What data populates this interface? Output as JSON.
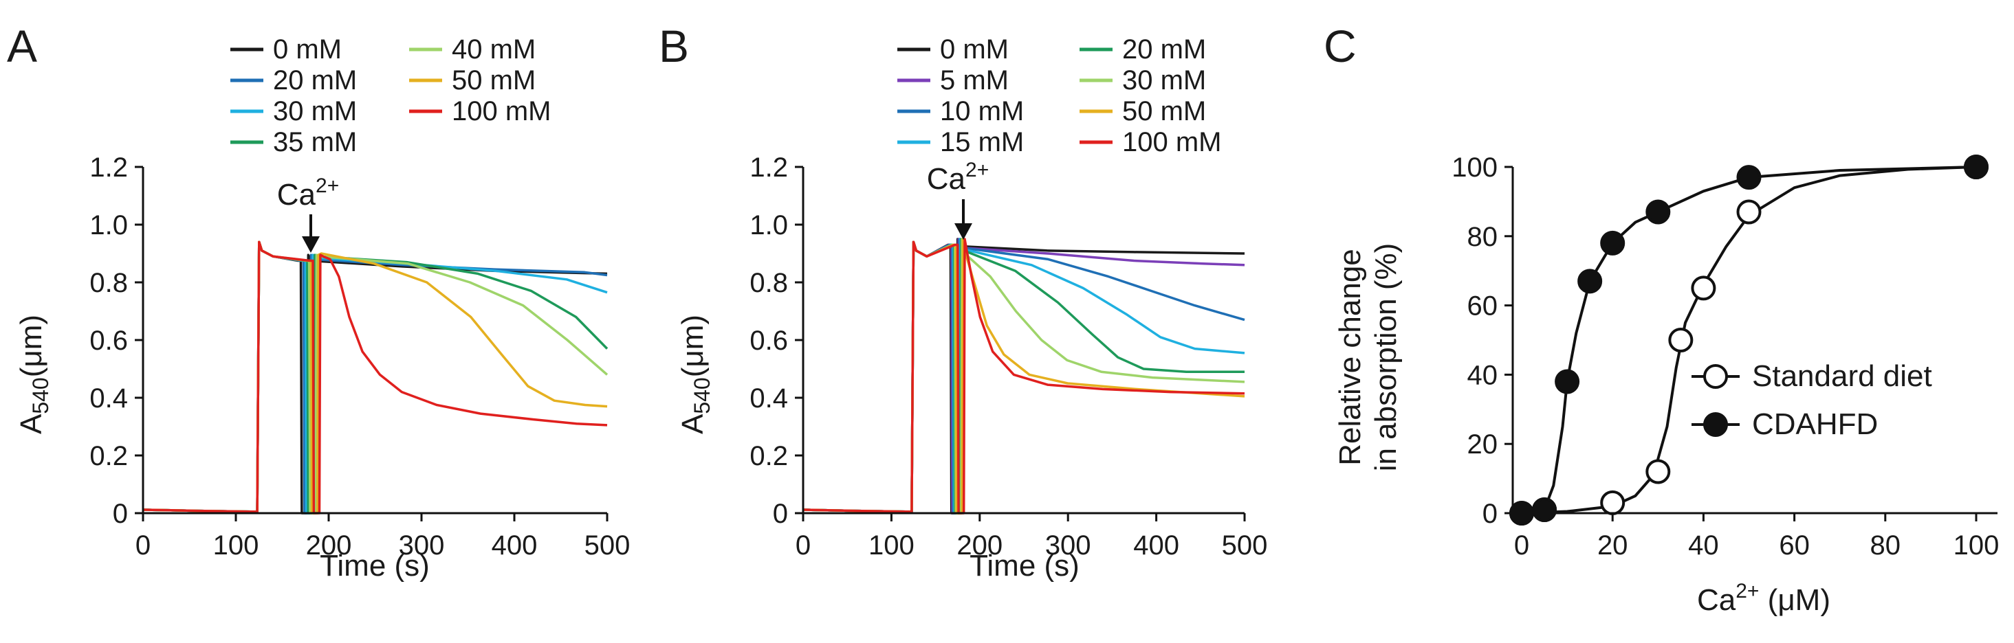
{
  "chart_data": [
    {
      "panel": "A",
      "type": "line",
      "xlabel": "Time (s)",
      "ylabel": "A540(μm)",
      "ylabel_main": "A",
      "ylabel_sub": "540",
      "ylabel_rest": "(μm)",
      "xlim": [
        0,
        500
      ],
      "ylim": [
        0,
        1.2
      ],
      "xticks": [
        "0",
        "100",
        "200",
        "300",
        "400",
        "500"
      ],
      "yticks": [
        "0",
        "0.2",
        "0.4",
        "0.6",
        "0.8",
        "1.0",
        "1.2"
      ],
      "annotation": {
        "text": "Ca",
        "sup": "2+",
        "x": 185
      },
      "legend": [
        "0 mM",
        "40 mM",
        "20 mM",
        "50 mM",
        "30 mM",
        "100 mM",
        "35 mM"
      ],
      "series": [
        {
          "name": "0 mM",
          "color": "#1a1a1a",
          "add_time": 175,
          "pre": 0.875,
          "points": [
            [
              0,
              0.875
            ],
            [
              100,
              0.855
            ],
            [
              200,
              0.84
            ],
            [
              325,
              0.83
            ]
          ]
        },
        {
          "name": "20 mM",
          "color": "#1f6fb5",
          "add_time": 178,
          "pre": 0.875,
          "points": [
            [
              0,
              0.88
            ],
            [
              100,
              0.86
            ],
            [
              200,
              0.845
            ],
            [
              300,
              0.835
            ],
            [
              325,
              0.825
            ]
          ]
        },
        {
          "name": "30 mM",
          "color": "#1fb0e0",
          "add_time": 180,
          "pre": 0.875,
          "points": [
            [
              0,
              0.885
            ],
            [
              100,
              0.865
            ],
            [
              200,
              0.84
            ],
            [
              280,
              0.81
            ],
            [
              325,
              0.765
            ]
          ]
        },
        {
          "name": "35 mM",
          "color": "#1e9a5a",
          "add_time": 182,
          "pre": 0.875,
          "points": [
            [
              0,
              0.89
            ],
            [
              100,
              0.87
            ],
            [
              180,
              0.83
            ],
            [
              240,
              0.77
            ],
            [
              290,
              0.68
            ],
            [
              325,
              0.57
            ]
          ]
        },
        {
          "name": "40 mM",
          "color": "#9fd46a",
          "add_time": 184,
          "pre": 0.875,
          "points": [
            [
              0,
              0.89
            ],
            [
              100,
              0.865
            ],
            [
              170,
              0.8
            ],
            [
              230,
              0.72
            ],
            [
              280,
              0.6
            ],
            [
              325,
              0.48
            ]
          ]
        },
        {
          "name": "50 mM",
          "color": "#e5b020",
          "add_time": 186,
          "pre": 0.875,
          "points": [
            [
              0,
              0.9
            ],
            [
              60,
              0.865
            ],
            [
              120,
              0.8
            ],
            [
              170,
              0.68
            ],
            [
              205,
              0.55
            ],
            [
              235,
              0.44
            ],
            [
              265,
              0.39
            ],
            [
              300,
              0.375
            ],
            [
              325,
              0.37
            ]
          ]
        },
        {
          "name": "100 mM",
          "color": "#e0201e",
          "add_time": 188,
          "pre": 0.875,
          "points": [
            [
              0,
              0.89
            ],
            [
              8,
              0.88
            ],
            [
              18,
              0.82
            ],
            [
              30,
              0.68
            ],
            [
              45,
              0.56
            ],
            [
              65,
              0.48
            ],
            [
              90,
              0.42
            ],
            [
              130,
              0.375
            ],
            [
              180,
              0.345
            ],
            [
              240,
              0.325
            ],
            [
              290,
              0.31
            ],
            [
              325,
              0.305
            ]
          ]
        }
      ]
    },
    {
      "panel": "B",
      "type": "line",
      "xlabel": "Time (s)",
      "ylabel": "A540(μm)",
      "ylabel_main": "A",
      "ylabel_sub": "540",
      "ylabel_rest": "(μm)",
      "xlim": [
        0,
        500
      ],
      "ylim": [
        0,
        1.2
      ],
      "xticks": [
        "0",
        "100",
        "200",
        "300",
        "400",
        "500"
      ],
      "yticks": [
        "0",
        "0.2",
        "0.4",
        "0.6",
        "0.8",
        "1.0",
        "1.2"
      ],
      "annotation": {
        "text": "Ca",
        "sup": "2+",
        "x": 178
      },
      "legend": [
        "0 mM",
        "20 mM",
        "5 mM",
        "30 mM",
        "10 mM",
        "50 mM",
        "15 mM",
        "100 mM"
      ],
      "series": [
        {
          "name": "0 mM",
          "color": "#1a1a1a",
          "add_time": 172,
          "pre": 0.93,
          "points": [
            [
              0,
              0.925
            ],
            [
              100,
              0.91
            ],
            [
              200,
              0.905
            ],
            [
              328,
              0.9
            ]
          ]
        },
        {
          "name": "5 mM",
          "color": "#7b3fb8",
          "add_time": 173,
          "pre": 0.93,
          "points": [
            [
              0,
              0.92
            ],
            [
              100,
              0.9
            ],
            [
              200,
              0.875
            ],
            [
              280,
              0.865
            ],
            [
              328,
              0.86
            ]
          ]
        },
        {
          "name": "10 mM",
          "color": "#1f6fb5",
          "add_time": 174,
          "pre": 0.93,
          "points": [
            [
              0,
              0.92
            ],
            [
              100,
              0.88
            ],
            [
              170,
              0.82
            ],
            [
              220,
              0.77
            ],
            [
              270,
              0.72
            ],
            [
              328,
              0.67
            ]
          ]
        },
        {
          "name": "15 mM",
          "color": "#1fb0e0",
          "add_time": 175,
          "pre": 0.93,
          "points": [
            [
              0,
              0.915
            ],
            [
              80,
              0.86
            ],
            [
              140,
              0.78
            ],
            [
              190,
              0.69
            ],
            [
              230,
              0.61
            ],
            [
              270,
              0.57
            ],
            [
              328,
              0.555
            ]
          ]
        },
        {
          "name": "20 mM",
          "color": "#1e9a5a",
          "add_time": 176,
          "pre": 0.93,
          "points": [
            [
              0,
              0.91
            ],
            [
              60,
              0.84
            ],
            [
              110,
              0.73
            ],
            [
              150,
              0.62
            ],
            [
              180,
              0.54
            ],
            [
              210,
              0.5
            ],
            [
              260,
              0.49
            ],
            [
              328,
              0.49
            ]
          ]
        },
        {
          "name": "30 mM",
          "color": "#9fd46a",
          "add_time": 177,
          "pre": 0.93,
          "points": [
            [
              0,
              0.9
            ],
            [
              30,
              0.82
            ],
            [
              60,
              0.7
            ],
            [
              90,
              0.6
            ],
            [
              120,
              0.53
            ],
            [
              160,
              0.49
            ],
            [
              220,
              0.47
            ],
            [
              328,
              0.455
            ]
          ]
        },
        {
          "name": "50 mM",
          "color": "#e5b020",
          "add_time": 178,
          "pre": 0.93,
          "points": [
            [
              0,
              0.9
            ],
            [
              10,
              0.8
            ],
            [
              25,
              0.65
            ],
            [
              45,
              0.55
            ],
            [
              75,
              0.48
            ],
            [
              120,
              0.45
            ],
            [
              200,
              0.43
            ],
            [
              328,
              0.405
            ]
          ]
        },
        {
          "name": "100 mM",
          "color": "#e0201e",
          "add_time": 180,
          "pre": 0.93,
          "points": [
            [
              0,
              0.9
            ],
            [
              5,
              0.82
            ],
            [
              15,
              0.68
            ],
            [
              30,
              0.56
            ],
            [
              55,
              0.48
            ],
            [
              95,
              0.445
            ],
            [
              160,
              0.43
            ],
            [
              240,
              0.42
            ],
            [
              328,
              0.415
            ]
          ]
        }
      ]
    },
    {
      "panel": "C",
      "type": "scatter",
      "xlabel": "Ca2+ (μM)",
      "xlabel_main": "Ca",
      "xlabel_sup": "2+",
      "xlabel_rest": " (μM)",
      "ylabel_line1": "Relative change",
      "ylabel_line2": "in absorption (%)",
      "xlim": [
        0,
        100
      ],
      "ylim": [
        0,
        100
      ],
      "xticks": [
        "0",
        "20",
        "40",
        "60",
        "80",
        "100"
      ],
      "yticks": [
        "0",
        "20",
        "40",
        "60",
        "80",
        "100"
      ],
      "series": [
        {
          "name": "Standard diet",
          "marker": "open",
          "x": [
            0,
            5,
            20,
            30,
            35,
            40,
            50,
            100
          ],
          "y": [
            0,
            1,
            3,
            12,
            50,
            65,
            87,
            100
          ],
          "curve": [
            [
              0,
              0
            ],
            [
              10,
              0.5
            ],
            [
              20,
              2
            ],
            [
              25,
              5
            ],
            [
              29,
              11
            ],
            [
              32,
              25
            ],
            [
              34,
              42
            ],
            [
              36,
              55
            ],
            [
              40,
              66
            ],
            [
              45,
              77
            ],
            [
              50,
              86
            ],
            [
              60,
              94
            ],
            [
              70,
              97.5
            ],
            [
              85,
              99.3
            ],
            [
              100,
              100
            ]
          ]
        },
        {
          "name": "CDAHFD",
          "marker": "filled",
          "x": [
            0,
            5,
            10,
            15,
            20,
            30,
            50,
            100
          ],
          "y": [
            0,
            1,
            38,
            67,
            78,
            87,
            97,
            100
          ],
          "curve": [
            [
              0,
              0
            ],
            [
              5,
              1
            ],
            [
              7,
              8
            ],
            [
              9,
              25
            ],
            [
              10,
              38
            ],
            [
              12,
              52
            ],
            [
              15,
              67
            ],
            [
              20,
              78
            ],
            [
              25,
              84
            ],
            [
              30,
              87
            ],
            [
              40,
              93
            ],
            [
              50,
              97
            ],
            [
              70,
              99
            ],
            [
              100,
              100
            ]
          ]
        }
      ]
    }
  ]
}
